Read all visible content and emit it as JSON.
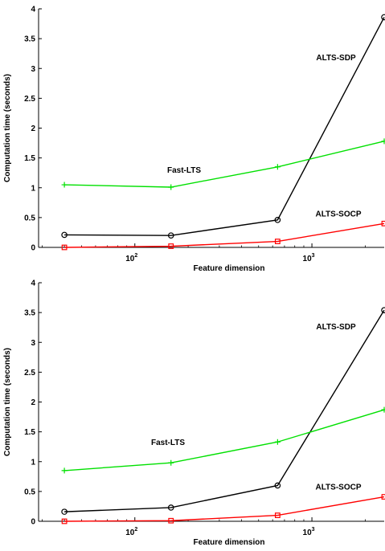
{
  "chart_data": [
    {
      "type": "line",
      "xscale": "log",
      "xlabel": "Feature dimension",
      "ylabel": "Computation time (seconds)",
      "ylim": [
        0,
        4
      ],
      "xticks": [
        {
          "base": "10",
          "exp": "2"
        },
        {
          "base": "10",
          "exp": "3"
        }
      ],
      "yticks": [
        "0",
        "0.5",
        "1",
        "1.5",
        "2",
        "2.5",
        "3",
        "3.5",
        "4"
      ],
      "x": [
        40,
        160,
        640,
        2560
      ],
      "series": [
        {
          "name": "ALTS-SDP",
          "color": "#000000",
          "marker": "circle",
          "values": [
            0.21,
            0.2,
            0.46,
            3.86
          ]
        },
        {
          "name": "Fast-LTS",
          "color": "#00e000",
          "marker": "plus",
          "values": [
            1.05,
            1.01,
            1.35,
            1.78
          ]
        },
        {
          "name": "ALTS-SOCP",
          "color": "#ff0000",
          "marker": "square",
          "values": [
            0.0,
            0.02,
            0.1,
            0.4
          ]
        }
      ]
    },
    {
      "type": "line",
      "xscale": "log",
      "xlabel": "Feature dimension",
      "ylabel": "Computation time (seconds)",
      "ylim": [
        0,
        4
      ],
      "xticks": [
        {
          "base": "10",
          "exp": "2"
        },
        {
          "base": "10",
          "exp": "3"
        }
      ],
      "yticks": [
        "0",
        "0.5",
        "1",
        "1.5",
        "2",
        "2.5",
        "3",
        "3.5",
        "4"
      ],
      "x": [
        40,
        160,
        640,
        2560
      ],
      "series": [
        {
          "name": "ALTS-SDP",
          "color": "#000000",
          "marker": "circle",
          "values": [
            0.16,
            0.23,
            0.6,
            3.54
          ]
        },
        {
          "name": "Fast-LTS",
          "color": "#00e000",
          "marker": "plus",
          "values": [
            0.85,
            0.98,
            1.33,
            1.87
          ]
        },
        {
          "name": "ALTS-SOCP",
          "color": "#ff0000",
          "marker": "square",
          "values": [
            0.0,
            0.01,
            0.1,
            0.41
          ]
        }
      ]
    }
  ]
}
